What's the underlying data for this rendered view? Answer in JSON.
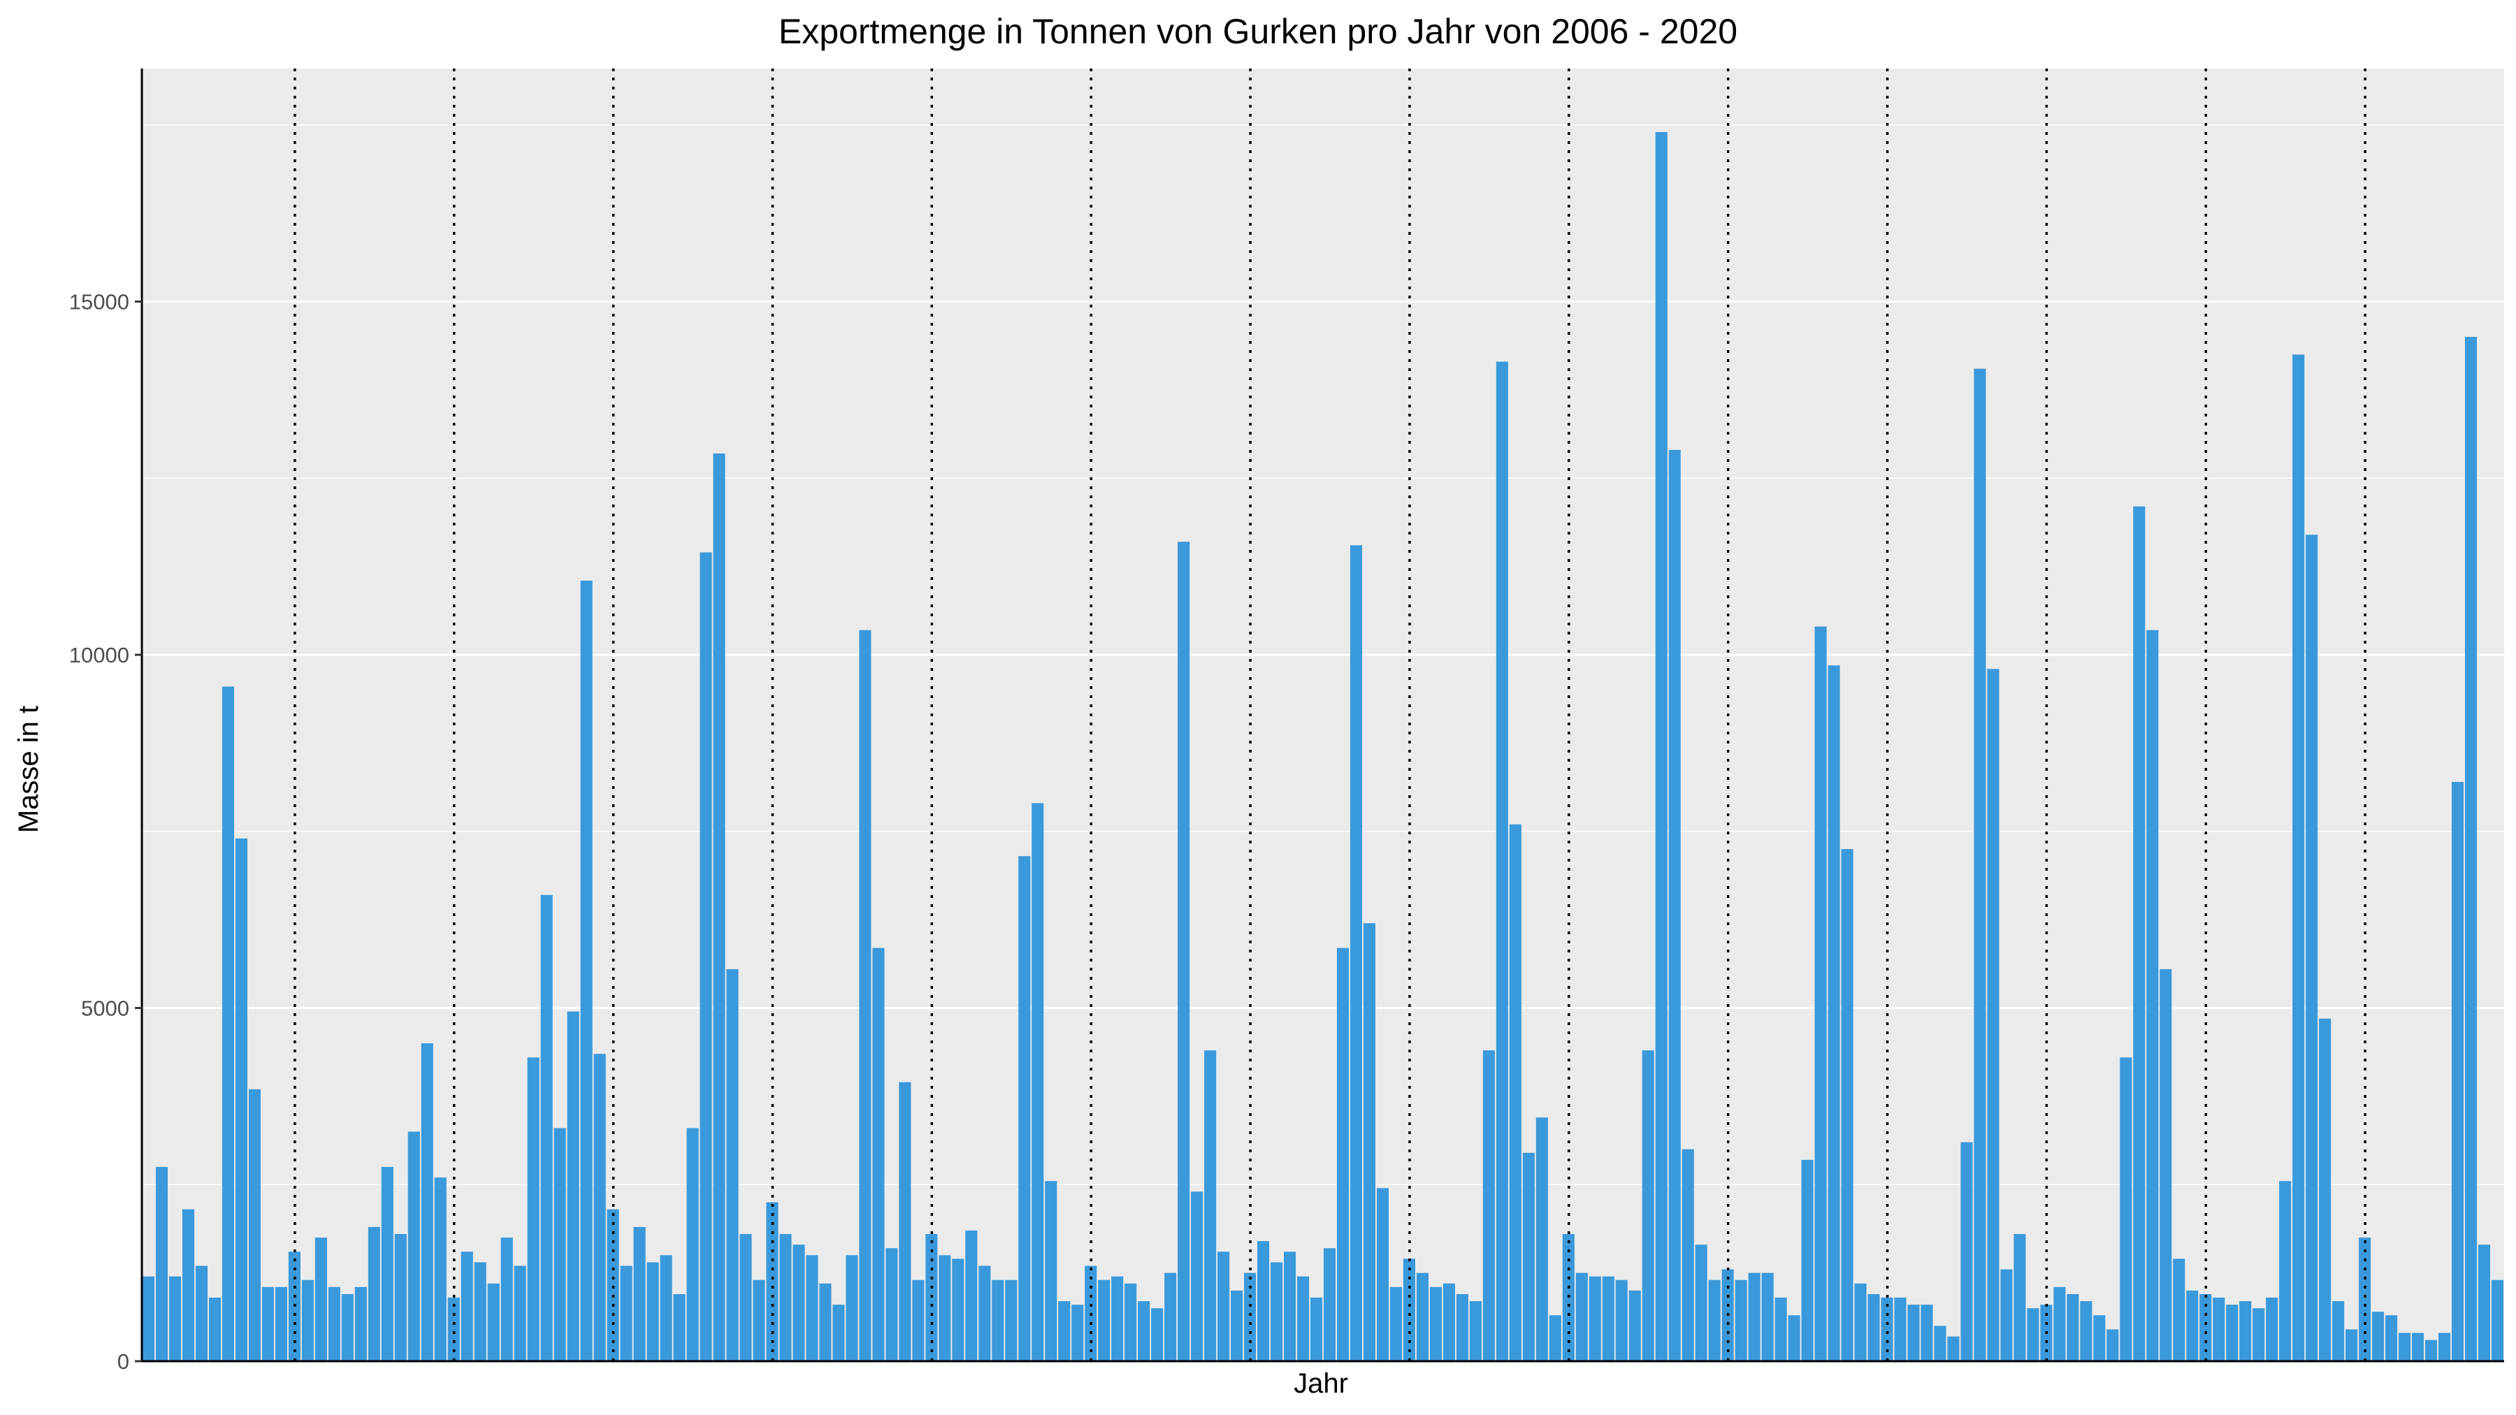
{
  "chart_data": {
    "type": "bar",
    "title": "Exportmenge in Tonnen von Gurken pro Jahr von 2006 - 2020",
    "xlabel": "Jahr",
    "ylabel": "Masse in t",
    "ylim": [
      0,
      18300
    ],
    "yticks": [
      0,
      5000,
      10000,
      15000
    ],
    "grid": true,
    "legend": "none",
    "bar_color": "#3A99DB",
    "panel_color": "#EBEBEB",
    "year_separators": "dotted vertical lines between years",
    "values": [
      1200,
      2750,
      1200,
      2150,
      1350,
      900,
      9550,
      7400,
      3850,
      1050,
      1050,
      1550,
      1150,
      1750,
      1050,
      950,
      1050,
      1900,
      2750,
      1800,
      3250,
      4500,
      2600,
      900,
      1550,
      1400,
      1100,
      1750,
      1350,
      4300,
      6600,
      3300,
      4950,
      11050,
      4350,
      2150,
      1350,
      1900,
      1400,
      1500,
      950,
      3300,
      11450,
      12850,
      5550,
      1800,
      1150,
      2250,
      1800,
      1650,
      1500,
      1100,
      800,
      1500,
      10350,
      5850,
      1600,
      3950,
      1150,
      1800,
      1500,
      1450,
      1850,
      1350,
      1150,
      1150,
      7150,
      7900,
      2550,
      850,
      800,
      1350,
      1150,
      1200,
      1100,
      850,
      750,
      1250,
      11600,
      2400,
      4400,
      1550,
      1000,
      1250,
      1700,
      1400,
      1550,
      1200,
      900,
      1600,
      5850,
      11550,
      6200,
      2450,
      1050,
      1450,
      1250,
      1050,
      1100,
      950,
      850,
      4400,
      14150,
      7600,
      2950,
      3450,
      650,
      1800,
      1250,
      1200,
      1200,
      1150,
      1000,
      4400,
      17400,
      12900,
      3000,
      1650,
      1150,
      1300,
      1150,
      1250,
      1250,
      900,
      650,
      2850,
      10400,
      9850,
      7250,
      1100,
      950,
      900,
      900,
      800,
      800,
      500,
      350,
      3100,
      14050,
      9800,
      1300,
      1800,
      750,
      800,
      1050,
      950,
      850,
      650,
      450,
      4300,
      12100,
      10350,
      5550,
      1450,
      1000,
      950,
      900,
      800,
      850,
      750,
      900,
      2550,
      14250,
      11700,
      4850,
      850,
      450,
      1750,
      700,
      650,
      400,
      400,
      300,
      400,
      8200,
      14500,
      1650,
      1150
    ]
  }
}
